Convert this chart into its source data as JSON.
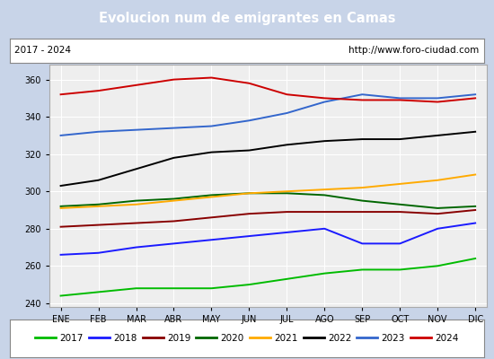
{
  "title": "Evolucion num de emigrantes en Camas",
  "title_color": "#ffffff",
  "title_bg": "#4472c4",
  "subtitle_left": "2017 - 2024",
  "subtitle_right": "http://www.foro-ciudad.com",
  "months": [
    "ENE",
    "FEB",
    "MAR",
    "ABR",
    "MAY",
    "JUN",
    "JUL",
    "AGO",
    "SEP",
    "OCT",
    "NOV",
    "DIC"
  ],
  "ylim": [
    238,
    368
  ],
  "yticks": [
    240,
    260,
    280,
    300,
    320,
    340,
    360
  ],
  "series_order": [
    "2017",
    "2018",
    "2019",
    "2020",
    "2021",
    "2022",
    "2023",
    "2024"
  ],
  "series": {
    "2017": {
      "color": "#00bb00",
      "data": [
        244,
        246,
        248,
        248,
        248,
        250,
        253,
        256,
        258,
        258,
        260,
        264
      ]
    },
    "2018": {
      "color": "#1a1aff",
      "data": [
        266,
        267,
        270,
        272,
        274,
        276,
        278,
        280,
        272,
        272,
        280,
        283
      ]
    },
    "2019": {
      "color": "#880000",
      "data": [
        281,
        282,
        283,
        284,
        286,
        288,
        289,
        289,
        289,
        289,
        288,
        290
      ]
    },
    "2020": {
      "color": "#006600",
      "data": [
        292,
        293,
        295,
        296,
        298,
        299,
        299,
        298,
        295,
        293,
        291,
        292
      ]
    },
    "2021": {
      "color": "#ffaa00",
      "data": [
        291,
        292,
        293,
        295,
        297,
        299,
        300,
        301,
        302,
        304,
        306,
        309
      ]
    },
    "2022": {
      "color": "#000000",
      "data": [
        303,
        306,
        312,
        318,
        321,
        322,
        325,
        327,
        328,
        328,
        330,
        332
      ]
    },
    "2023": {
      "color": "#3366cc",
      "data": [
        330,
        332,
        333,
        334,
        335,
        338,
        342,
        348,
        352,
        350,
        350,
        352
      ]
    },
    "2024": {
      "color": "#cc0000",
      "data": [
        352,
        354,
        357,
        360,
        361,
        358,
        352,
        350,
        349,
        349,
        348,
        350
      ]
    }
  }
}
